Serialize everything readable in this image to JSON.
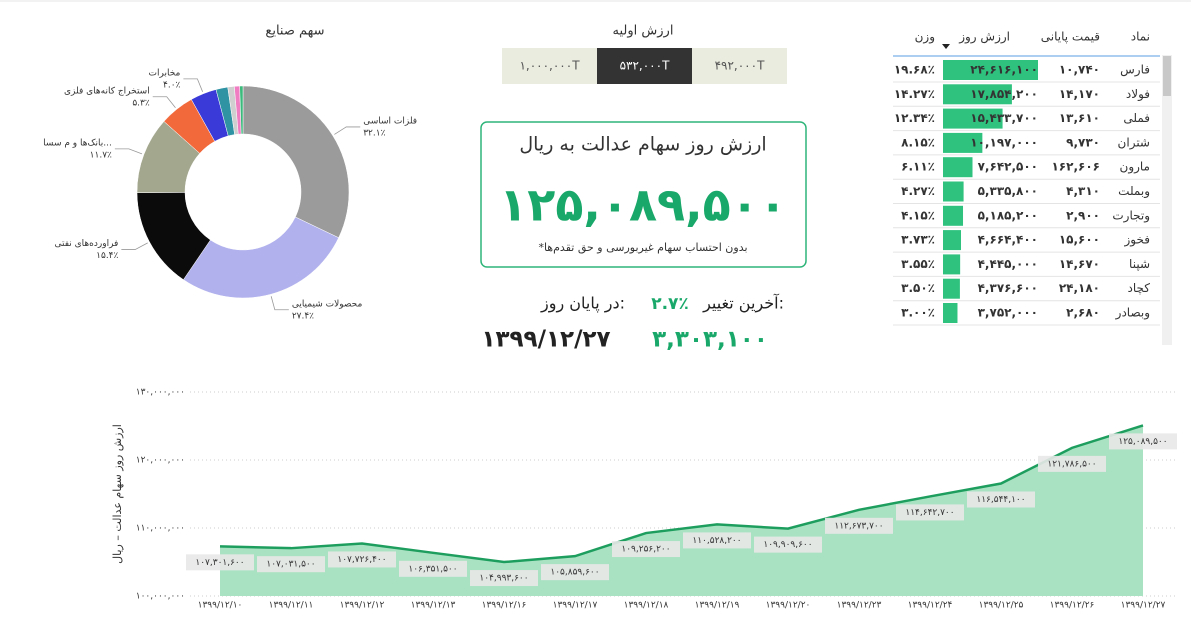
{
  "chart_data": [
    {
      "type": "pie",
      "title": "سهم صنایع",
      "categories": [
        "فلزات اساسی",
        "محصولات شیمیایی",
        "فراورده‌های نفتی",
        "بانک‌ها و م سسا...",
        "استخراج کانه‌های فلزی",
        "مخابرات",
        null,
        null,
        null,
        null
      ],
      "values": [
        32.1,
        27.4,
        15.4,
        11.7,
        5.3,
        4.0,
        1.8,
        1.0,
        0.8,
        0.5
      ],
      "value_labels": [
        "۳۲.۱٪",
        "۲۷.۴٪",
        "۱۵.۴٪",
        "۱۱.۷٪",
        "۵.۳٪",
        "۴.۰٪",
        null,
        null,
        null,
        null
      ],
      "colors": [
        "#9b9b9b",
        "#b1b1ee",
        "#0b0b0b",
        "#a3a78e",
        "#f2693c",
        "#3a3ad8",
        "#2f93a3",
        "#cfcfcf",
        "#f07cc2",
        "#3cba7c"
      ]
    },
    {
      "type": "area",
      "y_label": "ارزش روز سهام عدالت – ریال",
      "categories": [
        "۱۳۹۹/۱۲/۱۰",
        "۱۳۹۹/۱۲/۱۱",
        "۱۳۹۹/۱۲/۱۲",
        "۱۳۹۹/۱۲/۱۳",
        "۱۳۹۹/۱۲/۱۶",
        "۱۳۹۹/۱۲/۱۷",
        "۱۳۹۹/۱۲/۱۸",
        "۱۳۹۹/۱۲/۱۹",
        "۱۳۹۹/۱۲/۲۰",
        "۱۳۹۹/۱۲/۲۳",
        "۱۳۹۹/۱۲/۲۴",
        "۱۳۹۹/۱۲/۲۵",
        "۱۳۹۹/۱۲/۲۶",
        "۱۳۹۹/۱۲/۲۷"
      ],
      "values": [
        107301600,
        107031500,
        107726400,
        106351500,
        104993600,
        105859600,
        109256200,
        110528200,
        109909600,
        112673700,
        114642700,
        116544100,
        121786500,
        125089500
      ],
      "value_labels": [
        "۱۰۷,۳۰۱,۶۰۰",
        "۱۰۷,۰۳۱,۵۰۰",
        "۱۰۷,۷۲۶,۴۰۰",
        "۱۰۶,۳۵۱,۵۰۰",
        "۱۰۴,۹۹۳,۶۰۰",
        "۱۰۵,۸۵۹,۶۰۰",
        "۱۰۹,۲۵۶,۲۰۰",
        "۱۱۰,۵۲۸,۲۰۰",
        "۱۰۹,۹۰۹,۶۰۰",
        "۱۱۲,۶۷۳,۷۰۰",
        "۱۱۴,۶۴۲,۷۰۰",
        "۱۱۶,۵۴۴,۱۰۰",
        "۱۲۱,۷۸۶,۵۰۰",
        "۱۲۵,۰۸۹,۵۰۰"
      ],
      "color": "#1e9e5e",
      "fill": "#a9e2c2",
      "ylim": [
        100000000,
        130000000
      ],
      "yticks": [
        {
          "value": 100000000,
          "label": "۱۰۰,۰۰۰,۰۰۰"
        },
        {
          "value": 110000000,
          "label": "۱۱۰,۰۰۰,۰۰۰"
        },
        {
          "value": 120000000,
          "label": "۱۲۰,۰۰۰,۰۰۰"
        },
        {
          "value": 130000000,
          "label": "۱۳۰,۰۰۰,۰۰۰"
        }
      ],
      "grid": true
    }
  ],
  "initial_value": {
    "title": "ارزش اولیه",
    "options": [
      "۱,۰۰۰,۰۰۰T",
      "۵۳۲,۰۰۰T",
      "۴۹۲,۰۰۰T"
    ],
    "selected": 1
  },
  "kpi": {
    "title": "ارزش روز سهام عدالت به ریال",
    "value": "۱۲۵,۰۸۹,۵۰۰",
    "note": "*بدون احتساب سهام غیربورسی و حق تقدم‌ها",
    "change_label": "آخرین تغییر:",
    "change_value": "۲.۷٪",
    "end_label": "در پایان روز:",
    "end_change": "۳,۳۰۳,۱۰۰",
    "date": "۱۳۹۹/۱۲/۲۷"
  },
  "table": {
    "headers": [
      "نماد",
      "قیمت پایانی",
      "ارزش روز",
      "وزن"
    ],
    "bar_color": "#2ec27e",
    "rows": [
      [
        "فارس",
        "۱۰,۷۴۰",
        {
          "value": 24616100,
          "label": "۲۴,۶۱۶,۱۰۰"
        },
        "۱۹.۶۸٪"
      ],
      [
        "فولاد",
        "۱۴,۱۷۰",
        {
          "value": 17854200,
          "label": "۱۷,۸۵۴,۲۰۰"
        },
        "۱۴.۲۷٪"
      ],
      [
        "فملی",
        "۱۳,۶۱۰",
        {
          "value": 15433700,
          "label": "۱۵,۴۳۳,۷۰۰"
        },
        "۱۲.۳۴٪"
      ],
      [
        "شتران",
        "۹,۷۳۰",
        {
          "value": 10197000,
          "label": "۱۰,۱۹۷,۰۰۰"
        },
        "۸.۱۵٪"
      ],
      [
        "مارون",
        "۱۶۲,۶۰۶",
        {
          "value": 7642500,
          "label": "۷,۶۴۲,۵۰۰"
        },
        "۶.۱۱٪"
      ],
      [
        "وبملت",
        "۴,۳۱۰",
        {
          "value": 5335800,
          "label": "۵,۳۳۵,۸۰۰"
        },
        "۴.۲۷٪"
      ],
      [
        "وتجارت",
        "۲,۹۰۰",
        {
          "value": 5185200,
          "label": "۵,۱۸۵,۲۰۰"
        },
        "۴.۱۵٪"
      ],
      [
        "فخوز",
        "۱۵,۶۰۰",
        {
          "value": 4664400,
          "label": "۴,۶۶۴,۴۰۰"
        },
        "۳.۷۳٪"
      ],
      [
        "شپنا",
        "۱۴,۶۷۰",
        {
          "value": 4445000,
          "label": "۴,۴۴۵,۰۰۰"
        },
        "۳.۵۵٪"
      ],
      [
        "کچاد",
        "۲۴,۱۸۰",
        {
          "value": 4376600,
          "label": "۴,۳۷۶,۶۰۰"
        },
        "۳.۵۰٪"
      ],
      [
        "وبصادر",
        "۲,۶۸۰",
        {
          "value": 3752000,
          "label": "۳,۷۵۲,۰۰۰"
        },
        "۳.۰۰٪"
      ]
    ]
  }
}
